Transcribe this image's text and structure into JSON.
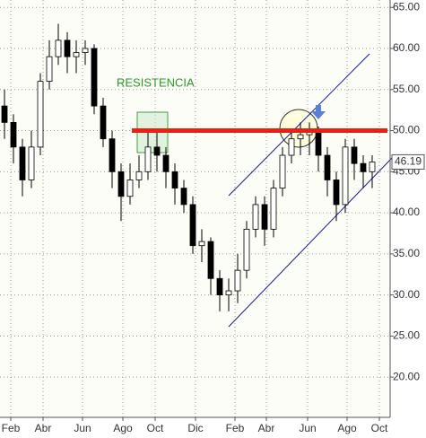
{
  "chart_data": {
    "type": "candlestick",
    "annotation": "RESISTENCIA",
    "resistance_level": 50,
    "last_price": 46.19,
    "x": [
      0,
      1,
      2,
      3,
      4,
      5,
      6,
      7,
      8,
      9,
      10,
      11,
      12,
      13,
      14,
      15,
      16,
      17,
      18,
      19,
      20,
      21,
      22,
      23,
      24,
      25,
      26,
      27,
      28,
      29,
      30,
      31,
      32,
      33,
      34,
      35,
      36,
      37,
      38,
      39,
      40,
      41
    ],
    "open": [
      53,
      51,
      48,
      44,
      48,
      56,
      59,
      61,
      59,
      59.5,
      60,
      53,
      49,
      45,
      42,
      44,
      45,
      48,
      47,
      45,
      43,
      41,
      36,
      36.5,
      32,
      30,
      30.5,
      33,
      38,
      41,
      38,
      43,
      47,
      49,
      49.5,
      50,
      47,
      44,
      41,
      48,
      46,
      45
    ],
    "high": [
      55,
      52,
      49,
      50,
      57,
      61,
      63,
      62,
      61,
      61,
      60.5,
      54,
      50,
      46,
      46,
      47,
      50,
      50,
      48,
      46,
      44,
      42,
      38,
      37,
      33,
      32,
      35,
      39,
      42,
      42,
      44,
      48,
      50,
      51,
      51,
      50.5,
      48,
      45,
      49,
      49,
      47,
      47
    ],
    "low": [
      49,
      46,
      42,
      43,
      47,
      55,
      58,
      57,
      57,
      58,
      52,
      48,
      43,
      39,
      41,
      43,
      44,
      45,
      43,
      41,
      40,
      35,
      34,
      30,
      28,
      28,
      29,
      32,
      37,
      36,
      37,
      42,
      46,
      47,
      47,
      45,
      42,
      39,
      40,
      44,
      43,
      43
    ],
    "close": [
      51,
      48,
      44,
      48,
      56,
      59,
      61,
      59,
      59.5,
      60,
      53,
      49,
      45,
      42,
      44,
      45,
      48,
      47,
      45,
      43,
      41,
      36,
      36.5,
      32,
      30,
      30.5,
      33,
      38,
      41,
      38,
      43,
      47,
      49,
      49.5,
      50,
      47,
      44,
      41,
      48,
      46,
      45,
      46.19
    ],
    "xlim": [
      -0.5,
      43
    ],
    "xticks": [
      {
        "value": 0.7,
        "label": "Feb"
      },
      {
        "value": 4.3,
        "label": "Abr"
      },
      {
        "value": 8.7,
        "label": "Jun"
      },
      {
        "value": 13.2,
        "label": "Ago"
      },
      {
        "value": 16.8,
        "label": "Oct"
      },
      {
        "value": 21.3,
        "label": "Dic"
      },
      {
        "value": 25.7,
        "label": "Feb"
      },
      {
        "value": 29.2,
        "label": "Abr"
      },
      {
        "value": 33.8,
        "label": "Jun"
      },
      {
        "value": 38.2,
        "label": "Ago"
      },
      {
        "value": 41.8,
        "label": "Oct"
      }
    ],
    "ylim": [
      15.1,
      65.9
    ],
    "yticks": [
      {
        "value": 20,
        "label": "20.00"
      },
      {
        "value": 25,
        "label": "25.00"
      },
      {
        "value": 30,
        "label": "30.00"
      },
      {
        "value": 35,
        "label": "35.00"
      },
      {
        "value": 40,
        "label": "40.00"
      },
      {
        "value": 45,
        "label": "45.00"
      },
      {
        "value": 50,
        "label": "50.00"
      },
      {
        "value": 55,
        "label": "55.00"
      },
      {
        "value": 60,
        "label": "60.00"
      },
      {
        "value": 65,
        "label": "65.00"
      }
    ],
    "grid": true
  }
}
